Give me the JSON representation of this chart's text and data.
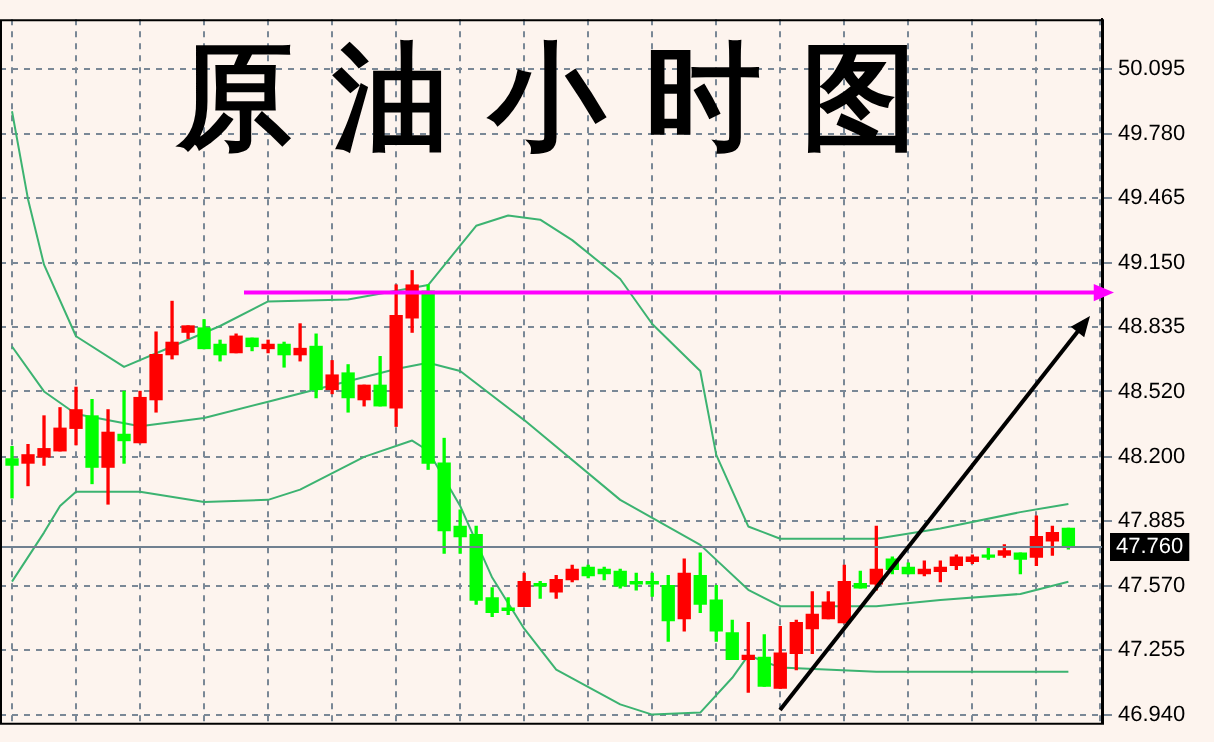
{
  "chart_data": {
    "type": "candlestick",
    "title": "原油小时图",
    "categories": [
      null,
      null,
      null,
      null,
      null,
      null,
      null,
      null,
      null,
      null,
      null,
      null,
      null,
      null,
      null,
      null,
      null,
      null,
      null,
      null,
      null,
      null,
      null,
      null,
      null,
      null,
      null,
      null,
      null,
      null,
      null,
      null,
      null,
      null,
      null,
      null,
      null,
      null,
      null,
      null,
      null,
      null,
      null,
      null,
      null,
      null,
      null,
      null,
      null,
      null,
      null,
      null,
      null,
      null,
      null,
      null,
      null,
      null,
      null,
      null,
      null,
      null,
      null,
      null,
      null,
      null,
      null,
      null,
      null
    ],
    "ohlc": [
      [
        48.19,
        48.25,
        48.0,
        48.16
      ],
      [
        48.17,
        48.26,
        48.06,
        48.21
      ],
      [
        48.2,
        48.4,
        48.16,
        48.24
      ],
      [
        48.23,
        48.44,
        48.23,
        48.34
      ],
      [
        48.34,
        48.54,
        48.26,
        48.43
      ],
      [
        48.4,
        48.48,
        48.07,
        48.15
      ],
      [
        48.15,
        48.43,
        47.97,
        48.32
      ],
      [
        48.31,
        48.52,
        48.17,
        48.28
      ],
      [
        48.27,
        48.52,
        48.27,
        48.49
      ],
      [
        48.48,
        48.81,
        48.42,
        48.7
      ],
      [
        48.7,
        48.96,
        48.68,
        48.76
      ],
      [
        48.81,
        48.84,
        48.78,
        48.84
      ],
      [
        48.83,
        48.87,
        48.73,
        48.73
      ],
      [
        48.75,
        48.77,
        48.67,
        48.7
      ],
      [
        48.71,
        48.8,
        48.71,
        48.79
      ],
      [
        48.78,
        48.78,
        48.72,
        48.74
      ],
      [
        48.73,
        48.77,
        48.71,
        48.75
      ],
      [
        48.75,
        48.76,
        48.64,
        48.7
      ],
      [
        48.7,
        48.85,
        48.67,
        48.73
      ],
      [
        48.74,
        48.8,
        48.49,
        48.53
      ],
      [
        48.53,
        48.67,
        48.51,
        48.6
      ],
      [
        48.61,
        48.65,
        48.42,
        48.49
      ],
      [
        48.48,
        48.55,
        48.45,
        48.55
      ],
      [
        48.55,
        48.69,
        48.45,
        48.45
      ],
      [
        48.44,
        49.04,
        48.35,
        48.89
      ],
      [
        48.88,
        49.11,
        48.81,
        49.04
      ],
      [
        49.01,
        49.04,
        48.14,
        48.17
      ],
      [
        48.17,
        48.29,
        47.73,
        47.84
      ],
      [
        47.86,
        47.94,
        47.73,
        47.81
      ],
      [
        47.82,
        47.86,
        47.48,
        47.5
      ],
      [
        47.51,
        47.56,
        47.42,
        47.44
      ],
      [
        47.46,
        47.51,
        47.43,
        47.45
      ],
      [
        47.47,
        47.63,
        47.47,
        47.59
      ],
      [
        47.58,
        47.59,
        47.51,
        47.57
      ],
      [
        47.54,
        47.62,
        47.51,
        47.6
      ],
      [
        47.6,
        47.67,
        47.59,
        47.65
      ],
      [
        47.66,
        47.67,
        47.61,
        47.62
      ],
      [
        47.65,
        47.66,
        47.6,
        47.63
      ],
      [
        47.64,
        47.65,
        47.56,
        47.57
      ],
      [
        47.59,
        47.63,
        47.55,
        47.58
      ],
      [
        47.59,
        47.63,
        47.52,
        47.58
      ],
      [
        47.57,
        47.62,
        47.3,
        47.4
      ],
      [
        47.41,
        47.7,
        47.35,
        47.63
      ],
      [
        47.62,
        47.73,
        47.44,
        47.48
      ],
      [
        47.5,
        47.57,
        47.3,
        47.35
      ],
      [
        47.34,
        47.4,
        47.21,
        47.21
      ],
      [
        47.21,
        47.39,
        47.05,
        47.23
      ],
      [
        47.22,
        47.33,
        47.08,
        47.08
      ],
      [
        47.07,
        47.37,
        47.07,
        47.24
      ],
      [
        47.24,
        47.4,
        47.16,
        47.39
      ],
      [
        47.36,
        47.54,
        47.24,
        47.43
      ],
      [
        47.41,
        47.54,
        47.41,
        47.49
      ],
      [
        47.39,
        47.67,
        47.39,
        47.59
      ],
      [
        47.58,
        47.64,
        47.56,
        47.56
      ],
      [
        47.58,
        47.86,
        47.55,
        47.65
      ],
      [
        47.7,
        47.71,
        47.63,
        47.65
      ],
      [
        47.66,
        47.68,
        47.63,
        47.63
      ],
      [
        47.63,
        47.69,
        47.62,
        47.65
      ],
      [
        47.64,
        47.69,
        47.59,
        47.66
      ],
      [
        47.67,
        47.72,
        47.65,
        47.71
      ],
      [
        47.69,
        47.72,
        47.68,
        47.71
      ],
      [
        47.72,
        47.76,
        47.7,
        47.71
      ],
      [
        47.72,
        47.77,
        47.71,
        47.74
      ],
      [
        47.73,
        47.73,
        47.63,
        47.7
      ],
      [
        47.71,
        47.91,
        47.67,
        47.81
      ],
      [
        47.79,
        47.86,
        47.72,
        47.83
      ],
      [
        47.85,
        47.85,
        47.75,
        47.76
      ],
      null,
      null
    ],
    "colors": [
      "#00ff00",
      "#ff0000",
      "#ff0000",
      "#ff0000",
      "#ff0000",
      "#00ff00",
      "#ff0000",
      "#00ff00",
      "#ff0000",
      "#ff0000",
      "#ff0000",
      "#ff0000",
      "#00ff00",
      "#00ff00",
      "#ff0000",
      "#00ff00",
      "#ff0000",
      "#00ff00",
      "#ff0000",
      "#00ff00",
      "#ff0000",
      "#00ff00",
      "#ff0000",
      "#00ff00",
      "#ff0000",
      "#ff0000",
      "#00ff00",
      "#00ff00",
      "#00ff00",
      "#00ff00",
      "#00ff00",
      "#00ff00",
      "#ff0000",
      "#00ff00",
      "#ff0000",
      "#ff0000",
      "#00ff00",
      "#00ff00",
      "#00ff00",
      "#00ff00",
      "#00ff00",
      "#00ff00",
      "#ff0000",
      "#00ff00",
      "#00ff00",
      "#00ff00",
      "#ff0000",
      "#00ff00",
      "#ff0000",
      "#ff0000",
      "#ff0000",
      "#ff0000",
      "#ff0000",
      "#00ff00",
      "#ff0000",
      "#00ff00",
      "#00ff00",
      "#ff0000",
      "#ff0000",
      "#ff0000",
      "#ff0000",
      "#00ff00",
      "#ff0000",
      "#00ff00",
      "#ff0000",
      "#ff0000",
      "#00ff00",
      null,
      null
    ],
    "series": [
      {
        "type": "line",
        "color": "#3cb371",
        "values": [
          49.89,
          49.46,
          49.14,
          null,
          48.79,
          null,
          null,
          48.64,
          null,
          null,
          48.74,
          null,
          null,
          48.84,
          null,
          null,
          48.96,
          null,
          null,
          null,
          null,
          48.97,
          null,
          null,
          null,
          null,
          49.04,
          null,
          null,
          49.33,
          null,
          49.38,
          null,
          49.36,
          null,
          49.26,
          null,
          null,
          49.07,
          null,
          48.85,
          null,
          null,
          48.62,
          48.21,
          null,
          47.86,
          null,
          47.8,
          null,
          null,
          null,
          null,
          null,
          47.8,
          null,
          null,
          null,
          47.85,
          null,
          null,
          null,
          null,
          47.93,
          null,
          null,
          47.97,
          null,
          null
        ]
      },
      {
        "type": "line",
        "color": "#3cb371",
        "values": [
          48.74,
          null,
          48.52,
          null,
          48.41,
          null,
          null,
          null,
          48.35,
          null,
          null,
          null,
          48.39,
          null,
          null,
          null,
          48.47,
          null,
          null,
          null,
          48.55,
          null,
          null,
          null,
          48.63,
          null,
          48.66,
          null,
          48.62,
          null,
          null,
          null,
          48.38,
          null,
          null,
          null,
          null,
          null,
          47.99,
          null,
          null,
          null,
          null,
          47.77,
          null,
          null,
          47.55,
          null,
          47.47,
          null,
          null,
          null,
          null,
          null,
          47.47,
          null,
          null,
          null,
          47.5,
          null,
          null,
          null,
          null,
          47.53,
          null,
          null,
          47.59,
          null,
          null
        ]
      },
      {
        "type": "line",
        "color": "#3cb371",
        "values": [
          47.59,
          null,
          47.83,
          47.96,
          48.03,
          null,
          null,
          null,
          48.03,
          null,
          null,
          null,
          47.98,
          null,
          null,
          null,
          47.99,
          null,
          48.04,
          null,
          null,
          null,
          48.2,
          null,
          null,
          48.28,
          48.23,
          null,
          47.96,
          null,
          47.61,
          null,
          47.36,
          null,
          47.16,
          null,
          null,
          null,
          46.99,
          null,
          46.94,
          null,
          null,
          46.95,
          null,
          47.12,
          47.23,
          null,
          47.17,
          null,
          null,
          null,
          null,
          null,
          47.15,
          null,
          null,
          null,
          null,
          null,
          null,
          47.15,
          null,
          null,
          null,
          null,
          47.15,
          null,
          null
        ]
      }
    ],
    "ylim": [
      46.9,
      50.34
    ],
    "yticks": [
      {
        "value": 46.94,
        "label": "46.940"
      },
      47.255,
      {
        "value": 47.57,
        "label": "47.570"
      },
      47.885,
      {
        "value": 48.2,
        "label": "48.200"
      },
      {
        "value": 48.52,
        "label": "48.520"
      },
      48.835,
      {
        "value": 49.15,
        "label": "49.150"
      },
      49.465,
      {
        "value": 49.78,
        "label": "49.780"
      },
      50.095
    ],
    "ref_lines": [
      {
        "axis": "y",
        "value": 47.76,
        "label": "47.760",
        "color": "#708090"
      }
    ],
    "grid": true,
    "tick_labels": "y"
  }
}
